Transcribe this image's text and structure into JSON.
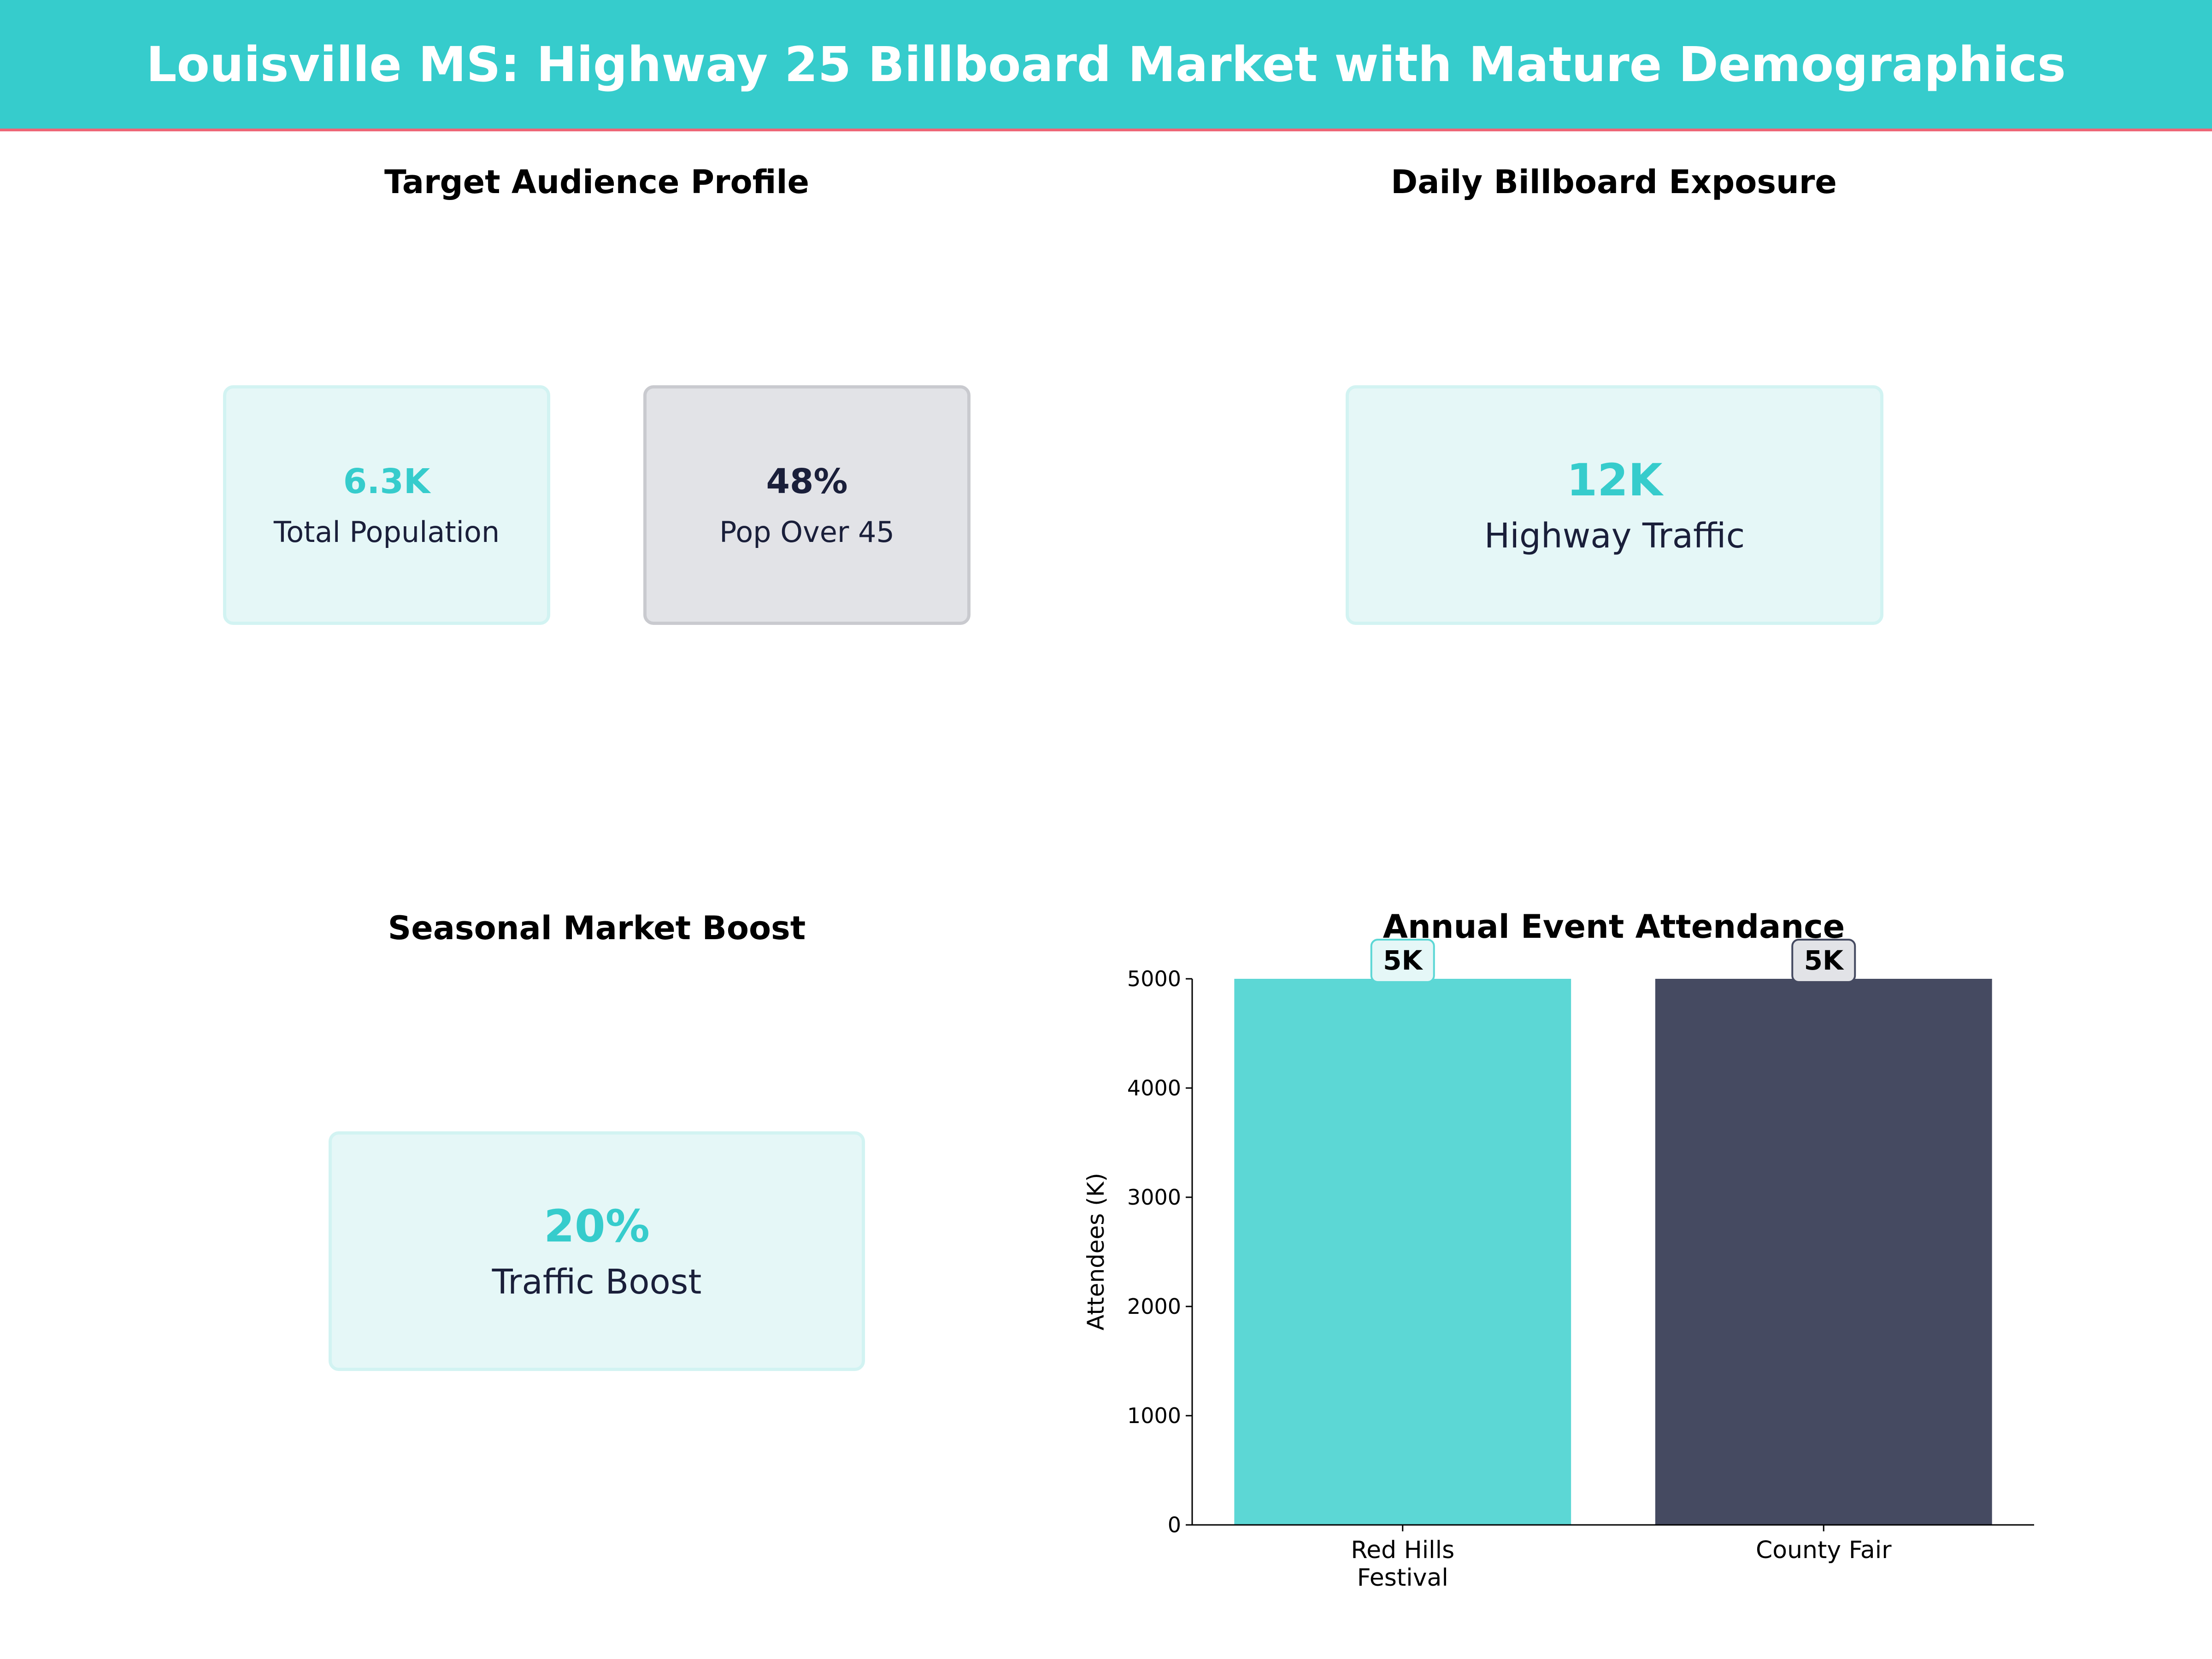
{
  "header": {
    "title": "Louisville MS: Highway 25 Billboard Market with Mature Demographics"
  },
  "colors": {
    "accent": "#36CCCC",
    "stripe": "#EE6677",
    "dark": "#1A1F3A",
    "bar1": "#5CD7D5",
    "bar2": "#454A61"
  },
  "panels": {
    "audience": {
      "title": "Target Audience Profile",
      "cards": [
        {
          "value": "6.3K",
          "label": "Total Population"
        },
        {
          "value": "48%",
          "label": "Pop Over 45"
        }
      ]
    },
    "exposure": {
      "title": "Daily Billboard Exposure",
      "card": {
        "value": "12K",
        "label": "Highway Traffic"
      }
    },
    "seasonal": {
      "title": "Seasonal Market Boost",
      "card": {
        "value": "20%",
        "label": "Traffic Boost"
      }
    }
  },
  "chart_data": {
    "type": "bar",
    "title": "Annual Event Attendance",
    "categories": [
      "Red Hills\nFestival",
      "County Fair"
    ],
    "values": [
      5000,
      5000
    ],
    "data_labels": [
      "5K",
      "5K"
    ],
    "bar_colors": [
      "#5CD7D5",
      "#454A61"
    ],
    "xlabel": "",
    "ylabel": "Attendees (K)",
    "ylim": [
      0,
      5000
    ],
    "yticks": [
      0,
      1000,
      2000,
      3000,
      4000,
      5000
    ],
    "grid": false,
    "legend": "none"
  }
}
